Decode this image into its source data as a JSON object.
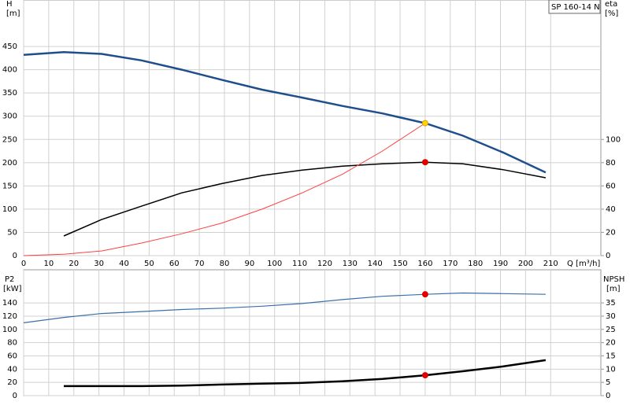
{
  "chart_data": [
    {
      "type": "line",
      "title": "SP 160-14 N",
      "y_label": "H",
      "y_unit": "[m]",
      "y2_label": "eta",
      "y2_unit": "[%]",
      "x_label": "Q [m³/h]",
      "xlim": [
        0,
        230
      ],
      "xticks": [
        0,
        10,
        20,
        30,
        40,
        50,
        60,
        70,
        80,
        90,
        100,
        110,
        120,
        130,
        140,
        150,
        160,
        170,
        180,
        190,
        200,
        210
      ],
      "ylim": [
        0,
        550
      ],
      "yticks": [
        0,
        50,
        100,
        150,
        200,
        250,
        300,
        350,
        400,
        450
      ],
      "y2lim": [
        0,
        220
      ],
      "y2ticks": [
        0,
        20,
        40,
        60,
        80,
        100
      ],
      "grid": true,
      "series": [
        {
          "color": "#1f4e8c",
          "width": 2.5,
          "x": [
            0,
            16,
            31,
            47,
            63,
            79,
            95,
            111,
            127,
            143,
            160,
            175,
            191,
            208
          ],
          "values": [
            432,
            438,
            434,
            420,
            400,
            378,
            357,
            340,
            322,
            306,
            285,
            258,
            222,
            179
          ]
        },
        {
          "color": "#000000",
          "width": 1.5,
          "axis": "y2",
          "x": [
            16,
            31,
            47,
            63,
            79,
            95,
            111,
            127,
            143,
            160,
            175,
            191,
            208
          ],
          "values": [
            16.9,
            31,
            42.6,
            54,
            62,
            69,
            73.6,
            77,
            79,
            80.4,
            79,
            74,
            67
          ]
        },
        {
          "color": "#ff4040",
          "width": 1,
          "x": [
            0,
            16,
            31,
            47,
            63,
            79,
            95,
            111,
            127,
            143,
            160
          ],
          "values": [
            0,
            3,
            10,
            27,
            47,
            70,
            100,
            135,
            175,
            225,
            285
          ]
        },
        {
          "color": "#ffd700",
          "marker": true,
          "x": [
            160
          ],
          "values": [
            285
          ]
        },
        {
          "color": "#e00000",
          "marker": true,
          "axis": "y2",
          "x": [
            160
          ],
          "values": [
            80.4
          ]
        }
      ]
    },
    {
      "type": "line",
      "y_label": "P2",
      "y_unit": "[kW]",
      "y2_label": "NPSH",
      "y2_unit": "[m]",
      "xlim": [
        0,
        230
      ],
      "xticks": [
        0,
        10,
        20,
        30,
        40,
        50,
        60,
        70,
        80,
        90,
        100,
        110,
        120,
        130,
        140,
        150,
        160,
        170,
        180,
        190,
        200,
        210
      ],
      "ylim": [
        0,
        190
      ],
      "yticks": [
        0,
        20,
        40,
        60,
        80,
        100,
        120,
        140
      ],
      "y2lim": [
        0,
        47.5
      ],
      "y2ticks": [
        0,
        5,
        10,
        15,
        20,
        25,
        30,
        35
      ],
      "grid": true,
      "series": [
        {
          "color": "#3a6fa8",
          "width": 1.2,
          "x": [
            0,
            16,
            31,
            47,
            63,
            79,
            95,
            111,
            127,
            143,
            160,
            175,
            191,
            208
          ],
          "values": [
            110,
            118,
            124,
            127,
            130,
            132,
            135,
            139,
            145,
            150,
            153,
            155,
            154,
            153
          ]
        },
        {
          "color": "#000000",
          "width": 2.5,
          "axis": "y2",
          "x": [
            16,
            31,
            47,
            63,
            79,
            95,
            111,
            127,
            143,
            160,
            175,
            191,
            208
          ],
          "values": [
            3.6,
            3.6,
            3.6,
            3.8,
            4.2,
            4.5,
            4.8,
            5.4,
            6.3,
            7.7,
            9.2,
            11,
            13.4
          ]
        },
        {
          "color": "#e00000",
          "marker": true,
          "x": [
            160
          ],
          "values": [
            153
          ]
        },
        {
          "color": "#e00000",
          "marker": true,
          "axis": "y2",
          "x": [
            160
          ],
          "values": [
            7.7
          ]
        }
      ]
    }
  ]
}
